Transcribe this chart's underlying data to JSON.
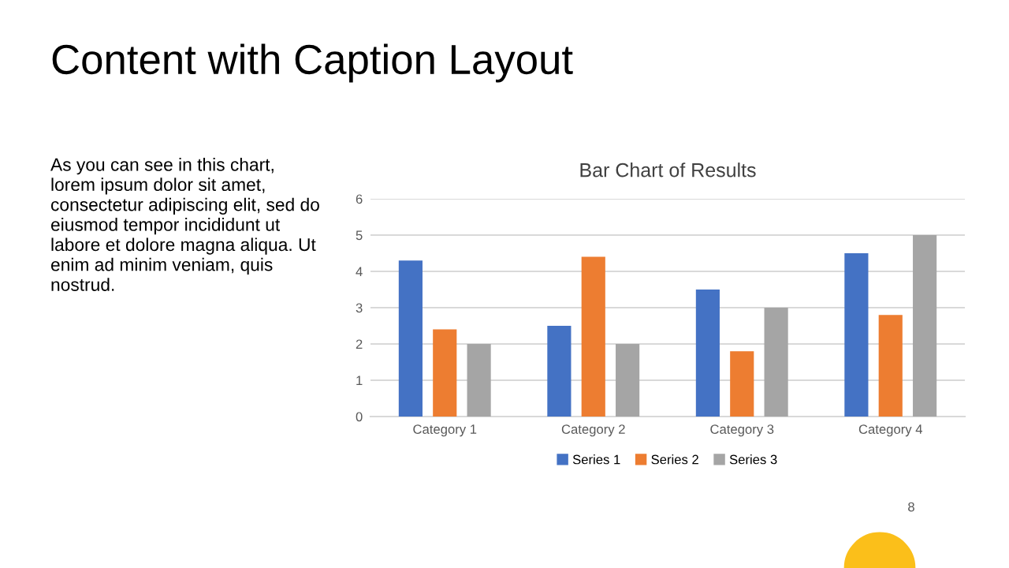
{
  "chart_data": {
    "type": "bar",
    "title": "Bar Chart of Results",
    "categories": [
      "Category 1",
      "Category 2",
      "Category 3",
      "Category 4"
    ],
    "series": [
      {
        "name": "Series 1",
        "color": "#4472c4",
        "values": [
          4.3,
          2.5,
          3.5,
          4.5
        ]
      },
      {
        "name": "Series 2",
        "color": "#ed7d31",
        "values": [
          2.4,
          4.4,
          1.8,
          2.8
        ]
      },
      {
        "name": "Series 3",
        "color": "#a5a5a5",
        "values": [
          2,
          2,
          3,
          5
        ]
      }
    ],
    "ylim": [
      0,
      6
    ],
    "yticks": [
      0,
      1,
      2,
      3,
      4,
      5,
      6
    ],
    "grid": "y",
    "legend": "bottom",
    "annotations": [
      "Content with Caption Layout",
      "As you can see in this chart,\nlorem ipsum dolor sit amet,\nconsectetur adipiscing elit, sed do\neiusmod tempor incididunt ut\nlabore et dolore magna aliqua. Ut\nenim ad minim veniam, quis\nnostrud.",
      "8"
    ]
  }
}
